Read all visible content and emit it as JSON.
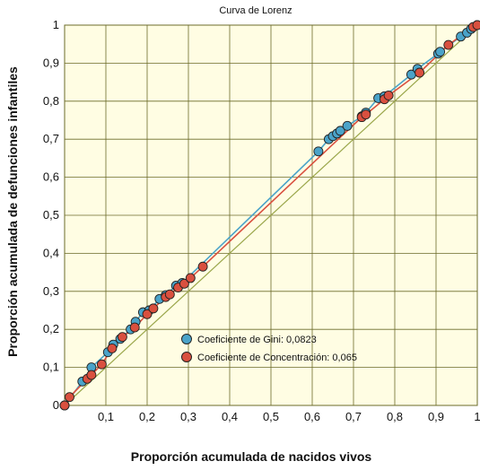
{
  "chart_data": {
    "type": "scatter",
    "title": "Curva de Lorenz",
    "xlabel": "Proporción acumulada de nacidos vivos",
    "ylabel": "Proporción acumulada de defunciones infantiles",
    "xlim": [
      0,
      1
    ],
    "ylim": [
      0,
      1
    ],
    "x_ticks": [
      "0,1",
      "0,2",
      "0,3",
      "0,4",
      "0,5",
      "0,6",
      "0,7",
      "0,8",
      "0,9",
      "1"
    ],
    "y_ticks": [
      "0",
      "0,1",
      "0,2",
      "0,3",
      "0,4",
      "0,5",
      "0,6",
      "0,7",
      "0,8",
      "0,9",
      "1"
    ],
    "grid": true,
    "legend_position": "bottom-center",
    "colors": {
      "gini": "#4aa3c9",
      "concentracion": "#d9503f",
      "equality": "#9aa64a",
      "background": "#fffde3",
      "grid": "#6b6b2a"
    },
    "series": [
      {
        "name": "Coeficiente de Gini: 0,0823",
        "color": "#4aa3c9",
        "points": [
          [
            0.0,
            0.0
          ],
          [
            0.043,
            0.063
          ],
          [
            0.065,
            0.1
          ],
          [
            0.105,
            0.14
          ],
          [
            0.118,
            0.16
          ],
          [
            0.135,
            0.175
          ],
          [
            0.16,
            0.2
          ],
          [
            0.172,
            0.22
          ],
          [
            0.19,
            0.245
          ],
          [
            0.205,
            0.25
          ],
          [
            0.23,
            0.28
          ],
          [
            0.245,
            0.29
          ],
          [
            0.27,
            0.315
          ],
          [
            0.285,
            0.322
          ],
          [
            0.615,
            0.668
          ],
          [
            0.64,
            0.7
          ],
          [
            0.65,
            0.708
          ],
          [
            0.66,
            0.715
          ],
          [
            0.668,
            0.722
          ],
          [
            0.685,
            0.735
          ],
          [
            0.72,
            0.76
          ],
          [
            0.73,
            0.77
          ],
          [
            0.76,
            0.808
          ],
          [
            0.775,
            0.813
          ],
          [
            0.84,
            0.87
          ],
          [
            0.855,
            0.885
          ],
          [
            0.905,
            0.925
          ],
          [
            0.91,
            0.93
          ],
          [
            0.96,
            0.97
          ],
          [
            0.975,
            0.98
          ],
          [
            0.985,
            0.99
          ],
          [
            1.0,
            1.0
          ]
        ]
      },
      {
        "name": "Coeficiente de Concentración: 0,065",
        "color": "#d9503f",
        "points": [
          [
            0.0,
            0.0
          ],
          [
            0.012,
            0.022
          ],
          [
            0.055,
            0.07
          ],
          [
            0.065,
            0.08
          ],
          [
            0.09,
            0.108
          ],
          [
            0.115,
            0.15
          ],
          [
            0.14,
            0.18
          ],
          [
            0.17,
            0.205
          ],
          [
            0.2,
            0.24
          ],
          [
            0.215,
            0.255
          ],
          [
            0.245,
            0.285
          ],
          [
            0.255,
            0.292
          ],
          [
            0.275,
            0.31
          ],
          [
            0.29,
            0.32
          ],
          [
            0.305,
            0.335
          ],
          [
            0.335,
            0.365
          ],
          [
            0.72,
            0.758
          ],
          [
            0.73,
            0.765
          ],
          [
            0.775,
            0.805
          ],
          [
            0.785,
            0.815
          ],
          [
            0.86,
            0.875
          ],
          [
            0.93,
            0.948
          ],
          [
            0.99,
            0.995
          ],
          [
            1.0,
            1.0
          ]
        ]
      }
    ]
  }
}
